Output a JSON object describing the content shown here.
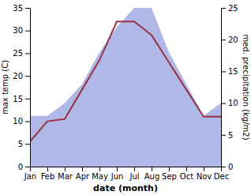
{
  "chart_data": {
    "type": "line",
    "categories": [
      "Jan",
      "Feb",
      "Mar",
      "Apr",
      "May",
      "Jun",
      "Jul",
      "Aug",
      "Sep",
      "Oct",
      "Nov",
      "Dec"
    ],
    "xlabel": "date (month)",
    "ylabel": "max temp (C)",
    "y2label": "med. precipitation (kg/m2)",
    "ylim": [
      0,
      35
    ],
    "yticks": [
      0,
      5,
      10,
      15,
      20,
      25,
      30,
      35
    ],
    "y2lim": [
      0,
      25
    ],
    "y2ticks": [
      0,
      5,
      10,
      15,
      20,
      25
    ],
    "series": [
      {
        "type": "area",
        "axis": "y2",
        "color": "#b0b8e8",
        "values": [
          8.0,
          8.0,
          10.0,
          13.0,
          18.0,
          22.0,
          25.0,
          25.0,
          18.0,
          13.0,
          8.0,
          10.0
        ]
      },
      {
        "type": "line",
        "color": "#993344",
        "values": [
          5.5,
          10.0,
          10.5,
          17.0,
          23.5,
          32.0,
          32.0,
          29.0,
          23.0,
          17.0,
          11.0,
          11.0
        ]
      }
    ]
  }
}
